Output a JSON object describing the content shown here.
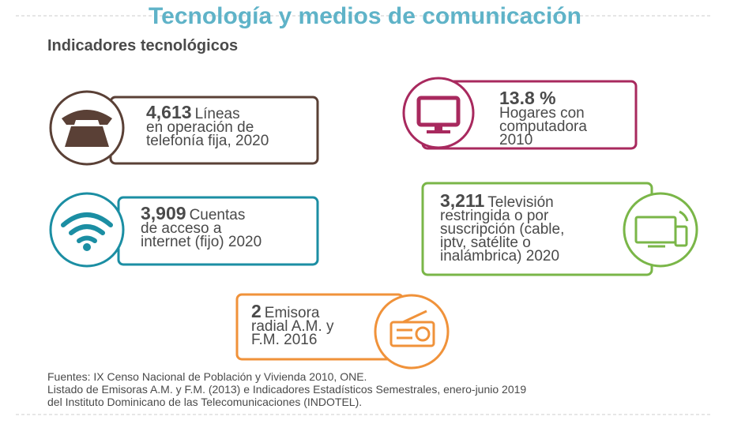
{
  "header": {
    "title": "Tecnología y medios de comunicación",
    "subtitle": "Indicadores tecnológicos"
  },
  "cards": [
    {
      "number": "4,613",
      "lines": [
        "Líneas",
        "en operación de",
        "telefonía fija, 2020"
      ]
    },
    {
      "number": "13.8 %",
      "lines": [
        "",
        "Hogares con",
        "computadora",
        "2010"
      ]
    },
    {
      "number": "3,909",
      "lines": [
        "Cuentas",
        "de acceso a",
        "internet (fijo) 2020"
      ]
    },
    {
      "number": "3,211",
      "lines": [
        "Televisión",
        "restringida o por",
        "suscripción (cable,",
        "iptv, satélite o",
        "inalámbrica) 2020"
      ]
    },
    {
      "number": "2",
      "lines": [
        "Emisora",
        "radial A.M. y",
        "F.M. 2016"
      ]
    }
  ],
  "sources": [
    "Fuentes: IX Censo Nacional de Población y Vivienda 2010, ONE.",
    "Listado de Emisoras A.M. y F.M. (2013) e Indicadores Estadísticos Semestrales, enero-junio 2019",
    "del Instituto Dominicano de las Telecomunicaciones (INDOTEL)."
  ]
}
